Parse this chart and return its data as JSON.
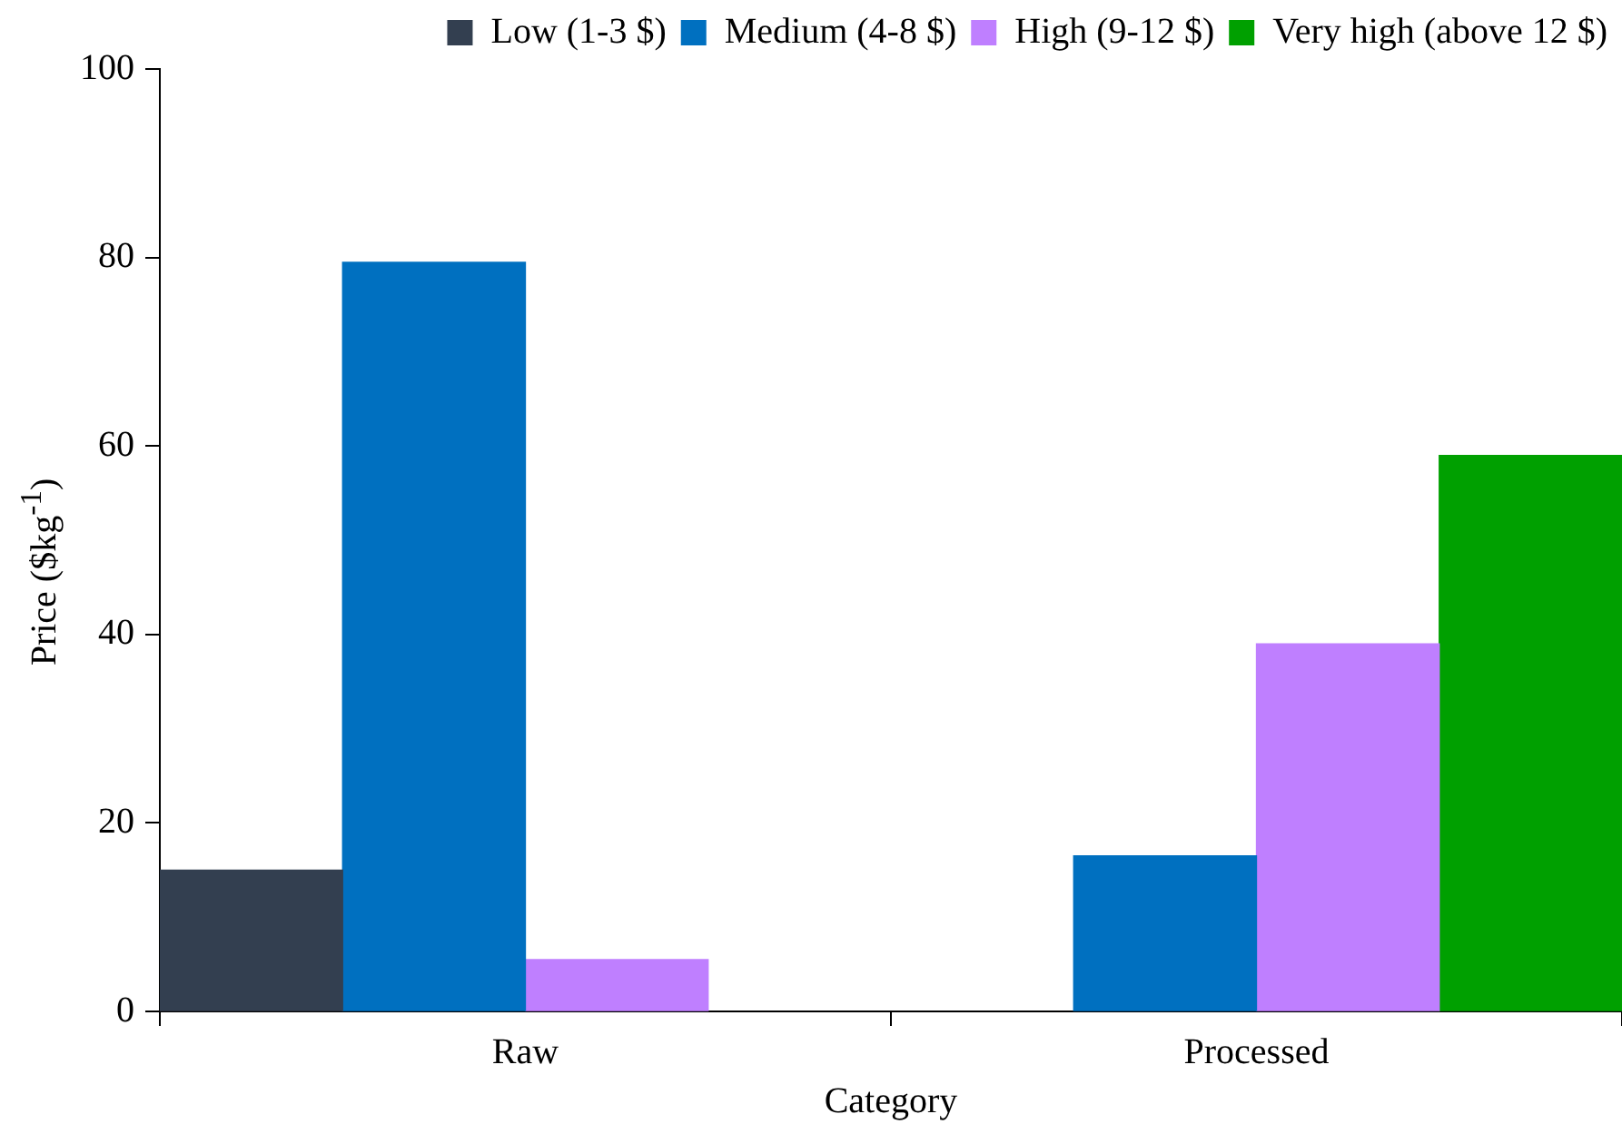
{
  "chart_data": {
    "type": "bar",
    "xlabel": "Category",
    "ylabel": "Price ($kg$^{-1}$)",
    "categories": [
      "Raw",
      "Processed"
    ],
    "series": [
      {
        "name": "Low (1-3 $)",
        "color": "#333f50",
        "values": [
          15,
          null
        ]
      },
      {
        "name": "Medium (4-8 $)",
        "color": "#0070c0",
        "values": [
          79.5,
          16.5
        ]
      },
      {
        "name": "High (9-12 $)",
        "color": "#bf7fff",
        "values": [
          5.5,
          39
        ]
      },
      {
        "name": "Very high (above 12 $)",
        "color": "#00a000",
        "values": [
          null,
          59
        ]
      }
    ],
    "ylim": [
      0,
      100
    ],
    "yticks": [
      0,
      20,
      40,
      60,
      80,
      100
    ],
    "grid": false,
    "legend": "top right"
  }
}
